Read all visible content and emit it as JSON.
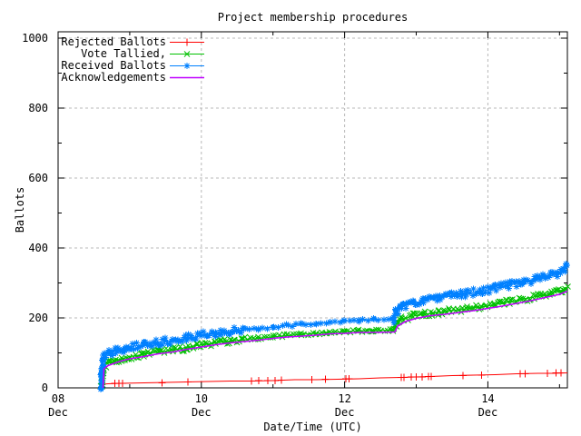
{
  "chart_data": {
    "type": "line",
    "title": "Project membership procedures",
    "xlabel": "Date/Time (UTC)",
    "ylabel": "Ballots",
    "legend_position": "top-left-inside",
    "grid": {
      "on": true,
      "color": "#b8b8b8",
      "dash": "3,3"
    },
    "colors": {
      "axis": "#000000",
      "background": "#ffffff"
    },
    "x_axis": {
      "unit": "days-since-08-Dec-00:00-UTC",
      "domain_days": [
        0,
        7.11
      ],
      "major_ticks": [
        {
          "day": 0,
          "line1": "08",
          "line2": "Dec"
        },
        {
          "day": 2,
          "line1": "10",
          "line2": "Dec"
        },
        {
          "day": 4,
          "line1": "12",
          "line2": "Dec"
        },
        {
          "day": 6,
          "line1": "14",
          "line2": "Dec"
        }
      ],
      "minor_tick_days": [
        1,
        3,
        5,
        7
      ]
    },
    "y_axis": {
      "range": [
        0,
        1000
      ],
      "major_ticks": [
        0,
        200,
        400,
        600,
        800,
        1000
      ],
      "minor_ticks": [
        100,
        300,
        500,
        700,
        900
      ]
    },
    "series": [
      {
        "name": "Rejected Ballots",
        "color": "#ff0000",
        "marker": "plus",
        "marker_mode": "sparse",
        "marker_days": [
          0.79,
          0.85,
          0.9,
          1.45,
          1.81,
          2.7,
          2.8,
          2.93,
          3.03,
          3.12,
          3.54,
          3.73,
          4.02,
          4.06,
          4.79,
          4.83,
          4.93,
          5.0,
          5.08,
          5.17,
          5.21,
          5.65,
          5.91,
          6.45,
          6.52,
          6.83,
          6.95,
          7.02
        ],
        "points": [
          [
            0.61,
            0
          ],
          [
            0.63,
            10
          ],
          [
            0.7,
            12
          ],
          [
            0.9,
            13
          ],
          [
            1.2,
            14
          ],
          [
            1.5,
            15
          ],
          [
            1.8,
            17
          ],
          [
            2.1,
            18
          ],
          [
            2.4,
            19
          ],
          [
            2.7,
            20
          ],
          [
            3.0,
            21
          ],
          [
            3.3,
            23
          ],
          [
            3.6,
            24
          ],
          [
            3.9,
            25
          ],
          [
            4.2,
            26
          ],
          [
            4.5,
            28
          ],
          [
            4.8,
            30
          ],
          [
            5.0,
            31
          ],
          [
            5.2,
            33
          ],
          [
            5.5,
            35
          ],
          [
            5.8,
            36
          ],
          [
            6.1,
            38
          ],
          [
            6.4,
            40
          ],
          [
            6.7,
            41
          ],
          [
            6.9,
            42
          ],
          [
            7.11,
            43
          ]
        ]
      },
      {
        "name": "Vote Tallied,",
        "color": "#00c000",
        "marker": "times",
        "marker_mode": "dense",
        "dense_step": 2.1,
        "dense_band": 6,
        "sparse_range": [
          2.6,
          4.6
        ],
        "sparse_step": 3.6,
        "sparse_band": 3,
        "points": [
          [
            0.61,
            0
          ],
          [
            0.62,
            30
          ],
          [
            0.64,
            62
          ],
          [
            0.7,
            70
          ],
          [
            0.8,
            78
          ],
          [
            0.9,
            84
          ],
          [
            1.0,
            89
          ],
          [
            1.2,
            96
          ],
          [
            1.4,
            102
          ],
          [
            1.6,
            108
          ],
          [
            1.8,
            115
          ],
          [
            2.0,
            123
          ],
          [
            2.2,
            129
          ],
          [
            2.4,
            134
          ],
          [
            2.6,
            138
          ],
          [
            2.8,
            142
          ],
          [
            3.0,
            146
          ],
          [
            3.2,
            150
          ],
          [
            3.4,
            153
          ],
          [
            3.6,
            156
          ],
          [
            3.8,
            159
          ],
          [
            4.0,
            161
          ],
          [
            4.2,
            163
          ],
          [
            4.4,
            164
          ],
          [
            4.68,
            165
          ],
          [
            4.72,
            182
          ],
          [
            4.8,
            196
          ],
          [
            4.95,
            205
          ],
          [
            5.1,
            211
          ],
          [
            5.3,
            216
          ],
          [
            5.5,
            221
          ],
          [
            5.7,
            226
          ],
          [
            5.9,
            231
          ],
          [
            6.1,
            238
          ],
          [
            6.3,
            246
          ],
          [
            6.5,
            254
          ],
          [
            6.7,
            262
          ],
          [
            6.9,
            272
          ],
          [
            7.05,
            280
          ],
          [
            7.11,
            286
          ]
        ]
      },
      {
        "name": "Received Ballots",
        "color": "#0080ff",
        "marker": "asterisk",
        "marker_mode": "dense",
        "dense_step": 1.8,
        "dense_band": 8,
        "sparse_range": [
          2.55,
          4.66
        ],
        "sparse_step": 6,
        "sparse_band": 3,
        "points": [
          [
            0.6,
            0
          ],
          [
            0.61,
            40
          ],
          [
            0.62,
            70
          ],
          [
            0.63,
            88
          ],
          [
            0.7,
            97
          ],
          [
            0.8,
            106
          ],
          [
            0.9,
            112
          ],
          [
            1.0,
            118
          ],
          [
            1.2,
            124
          ],
          [
            1.4,
            130
          ],
          [
            1.6,
            136
          ],
          [
            1.8,
            142
          ],
          [
            2.0,
            150
          ],
          [
            2.2,
            156
          ],
          [
            2.4,
            161
          ],
          [
            2.6,
            166
          ],
          [
            2.8,
            170
          ],
          [
            3.0,
            174
          ],
          [
            3.2,
            178
          ],
          [
            3.4,
            181
          ],
          [
            3.6,
            184
          ],
          [
            3.8,
            188
          ],
          [
            4.0,
            191
          ],
          [
            4.2,
            193
          ],
          [
            4.4,
            195
          ],
          [
            4.68,
            196
          ],
          [
            4.72,
            215
          ],
          [
            4.8,
            232
          ],
          [
            4.95,
            242
          ],
          [
            5.1,
            249
          ],
          [
            5.3,
            256
          ],
          [
            5.5,
            263
          ],
          [
            5.7,
            270
          ],
          [
            5.9,
            277
          ],
          [
            6.1,
            285
          ],
          [
            6.3,
            294
          ],
          [
            6.5,
            303
          ],
          [
            6.7,
            312
          ],
          [
            6.9,
            322
          ],
          [
            7.05,
            333
          ],
          [
            7.11,
            348
          ]
        ]
      },
      {
        "name": "Acknowledgements",
        "color": "#c000ff",
        "marker": "none",
        "marker_mode": "none",
        "points": [
          [
            0.63,
            0
          ],
          [
            0.64,
            55
          ],
          [
            0.7,
            64
          ],
          [
            0.8,
            72
          ],
          [
            0.9,
            78
          ],
          [
            1.0,
            83
          ],
          [
            1.2,
            90
          ],
          [
            1.4,
            97
          ],
          [
            1.6,
            103
          ],
          [
            1.8,
            110
          ],
          [
            2.0,
            117
          ],
          [
            2.2,
            123
          ],
          [
            2.4,
            128
          ],
          [
            2.6,
            133
          ],
          [
            2.8,
            137
          ],
          [
            3.0,
            141
          ],
          [
            3.2,
            145
          ],
          [
            3.4,
            148
          ],
          [
            3.6,
            151
          ],
          [
            3.8,
            154
          ],
          [
            4.0,
            156
          ],
          [
            4.2,
            158
          ],
          [
            4.4,
            159
          ],
          [
            4.7,
            160
          ],
          [
            4.74,
            176
          ],
          [
            4.85,
            190
          ],
          [
            5.0,
            199
          ],
          [
            5.2,
            206
          ],
          [
            5.4,
            211
          ],
          [
            5.6,
            216
          ],
          [
            5.8,
            221
          ],
          [
            6.0,
            227
          ],
          [
            6.2,
            234
          ],
          [
            6.4,
            242
          ],
          [
            6.6,
            250
          ],
          [
            6.8,
            259
          ],
          [
            7.0,
            268
          ],
          [
            7.11,
            276
          ]
        ]
      }
    ]
  }
}
